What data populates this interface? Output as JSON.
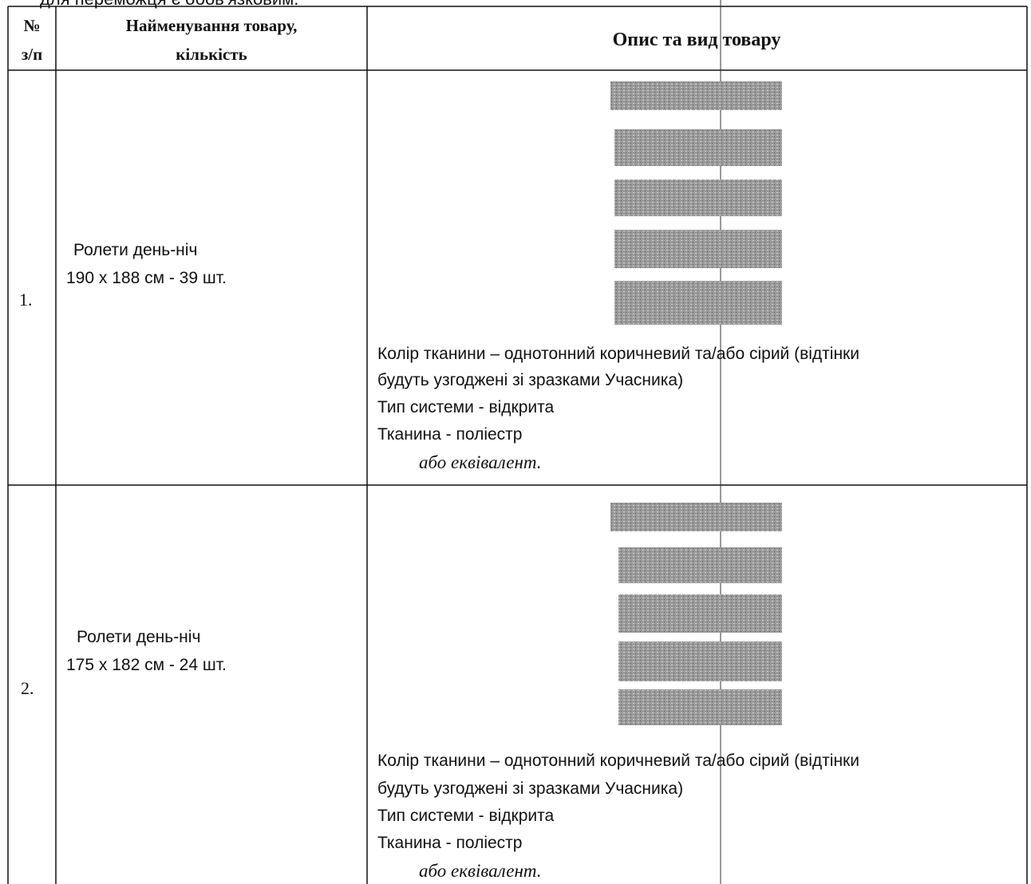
{
  "intro_text": "для переможця є обов'язковим.",
  "table": {
    "header": {
      "number": [
        "№",
        "з/п"
      ],
      "name": [
        "Найменування товару,",
        "кількість"
      ],
      "description": "Опис та вид товару"
    },
    "rows": [
      {
        "number": "1.",
        "name": [
          "Ролети день-ніч",
          "190 х 188 см - 39 шт."
        ],
        "description": [
          "Колір тканини – однотонний коричневий та/або сірий (відтінки",
          "будуть узгоджені зі зразками Учасника)",
          "Тип системи - відкрита",
          "Тканина - поліестр"
        ],
        "equivalent": "або еквівалент."
      },
      {
        "number": "2.",
        "name": [
          "Ролети день-ніч",
          "175 х 182 см - 24 шт."
        ],
        "description": [
          "Колір тканини – однотонний коричневий та/або сірий (відтінки",
          "будуть узгоджені зі зразками Учасника)",
          "Тип системи - відкрита",
          "Тканина - поліестр"
        ],
        "equivalent": "або еквівалент."
      }
    ]
  }
}
